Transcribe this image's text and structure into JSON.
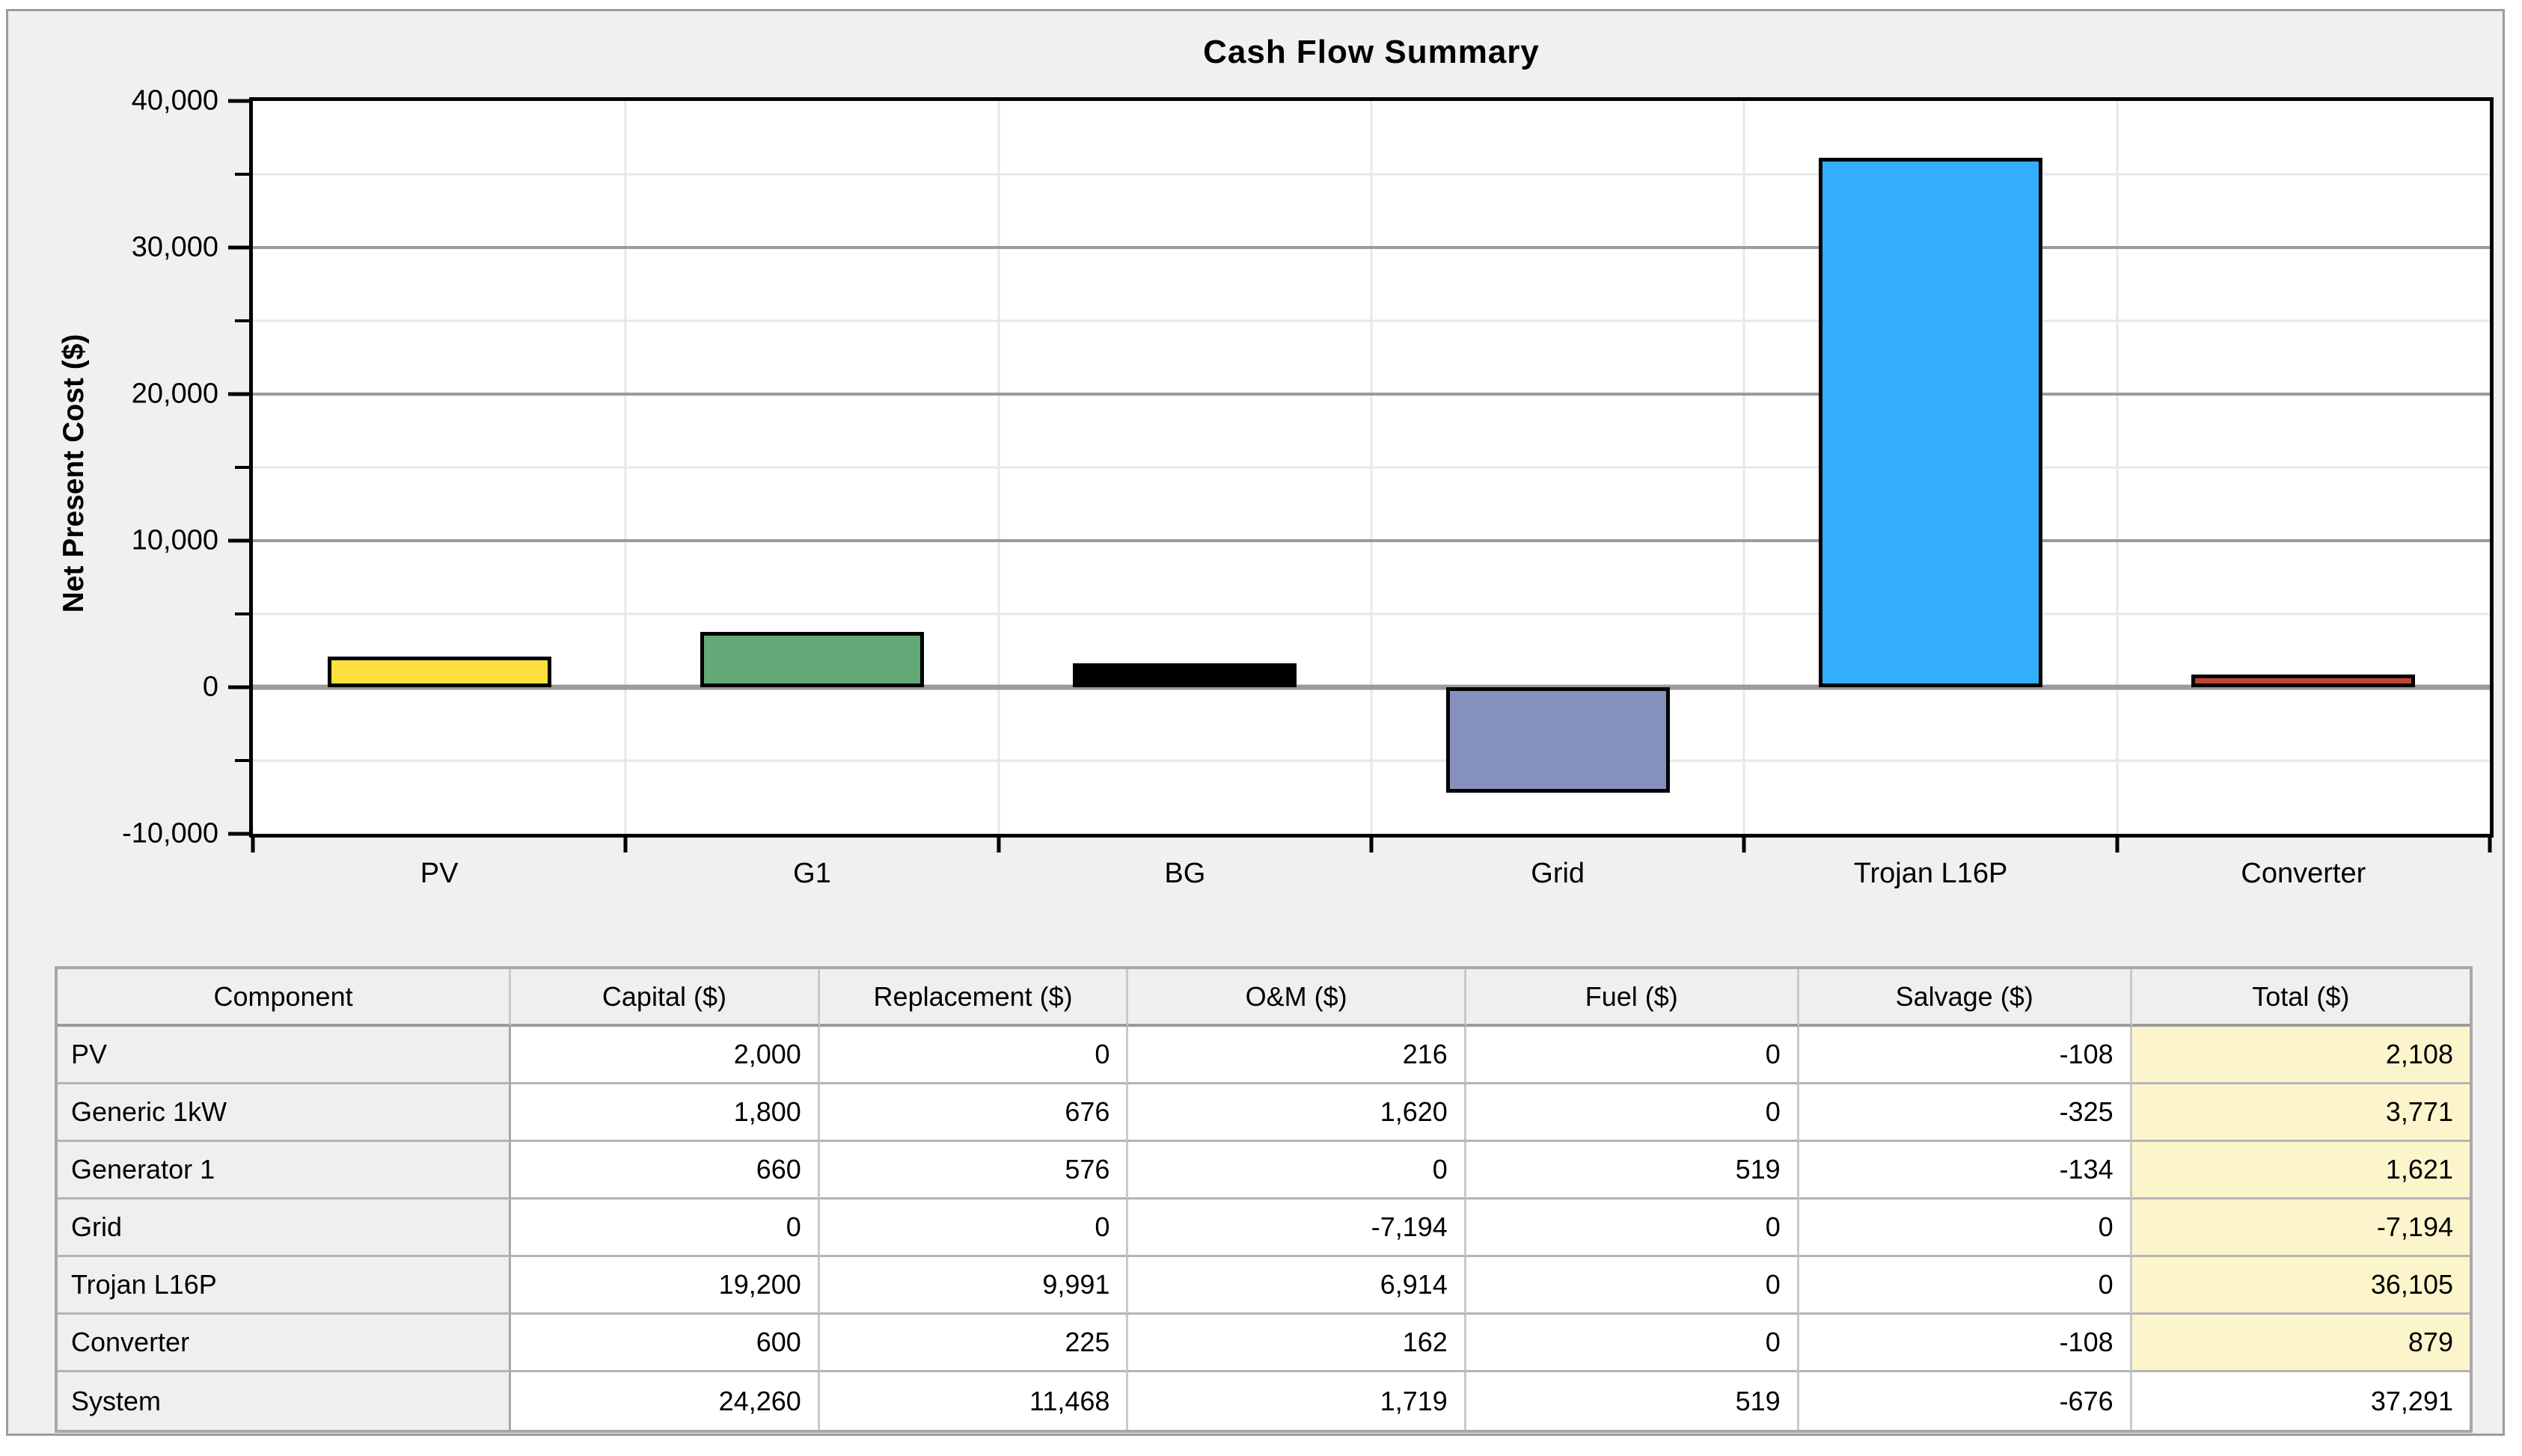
{
  "chart_data": {
    "type": "bar",
    "title": "Cash Flow Summary",
    "xlabel": "",
    "ylabel": "Net Present Cost ($)",
    "categories": [
      "PV",
      "G1",
      "BG",
      "Grid",
      "Trojan L16P",
      "Converter"
    ],
    "values": [
      2108,
      3771,
      1621,
      -7194,
      36105,
      879
    ],
    "bar_colors": [
      "#ffdf3d",
      "#63a877",
      "#000000",
      "#8590bc",
      "#33aefb",
      "#bf4437"
    ],
    "ylim": [
      -10000,
      40000
    ],
    "ytick_interval": 10000,
    "yminor_interval": 5000,
    "ytick_labels": [
      "40,000",
      "30,000",
      "20,000",
      "10,000",
      "0",
      "-10,000"
    ],
    "grid": true,
    "legend": false,
    "grid_major_color": "#9b9b9b",
    "grid_minor_color": "#e7e7e7",
    "plot_bg": "#ffffff",
    "page_bg": "#f0f0f0"
  },
  "table": {
    "columns": [
      "Component",
      "Capital ($)",
      "Replacement ($)",
      "O&M ($)",
      "Fuel ($)",
      "Salvage ($)",
      "Total ($)"
    ],
    "rows": [
      [
        "PV",
        "2,000",
        "0",
        "216",
        "0",
        "-108",
        "2,108"
      ],
      [
        "Generic 1kW",
        "1,800",
        "676",
        "1,620",
        "0",
        "-325",
        "3,771"
      ],
      [
        "Generator 1",
        "660",
        "576",
        "0",
        "519",
        "-134",
        "1,621"
      ],
      [
        "Grid",
        "0",
        "0",
        "-7,194",
        "0",
        "0",
        "-7,194"
      ],
      [
        "Trojan L16P",
        "19,200",
        "9,991",
        "6,914",
        "0",
        "0",
        "36,105"
      ],
      [
        "Converter",
        "600",
        "225",
        "162",
        "0",
        "-108",
        "879"
      ],
      [
        "System",
        "24,260",
        "11,468",
        "1,719",
        "519",
        "-676",
        "37,291"
      ]
    ],
    "system_row_label": "System",
    "total_column_bg": "#fcf5cc",
    "header_bg": "#efefef"
  }
}
